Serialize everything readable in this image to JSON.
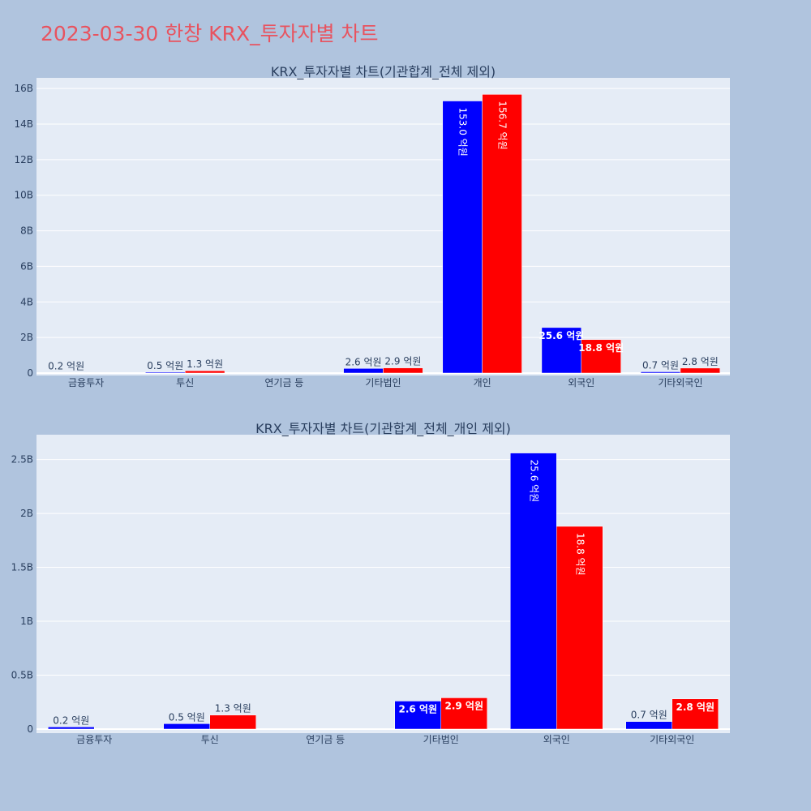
{
  "page_title": "2023-03-30 한창 KRX_투자자별 차트",
  "colors": {
    "background": "#b0c4de",
    "plot_bg": "#e5ecf6",
    "title": "#e8535f",
    "series_sell": "#0000ff",
    "series_buy": "#ff0000"
  },
  "chart_data": [
    {
      "type": "bar",
      "title": "KRX_투자자별 차트(기관합계_전체 제외)",
      "categories": [
        "금융투자",
        "투신",
        "연기금 등",
        "기타법인",
        "개인",
        "외국인",
        "기타외국인"
      ],
      "series": [
        {
          "color": "#0000ff",
          "values": [
            20000000,
            50000000,
            0,
            260000000,
            15300000000,
            2560000000,
            70000000
          ],
          "labels": [
            "0.2 억원",
            "0.5 억원",
            "",
            "2.6 억원",
            "153.0 억원",
            "25.6 억원",
            "0.7 억원"
          ]
        },
        {
          "color": "#ff0000",
          "values": [
            0,
            130000000,
            0,
            290000000,
            15670000000,
            1880000000,
            280000000
          ],
          "labels": [
            "",
            "1.3 억원",
            "",
            "2.9 억원",
            "156.7 억원",
            "18.8 억원",
            "2.8 억원"
          ]
        }
      ],
      "ylim": [
        0,
        16600000000
      ],
      "yticks": [
        0,
        2000000000,
        4000000000,
        6000000000,
        8000000000,
        10000000000,
        12000000000,
        14000000000,
        16000000000
      ],
      "yticklabels": [
        "0",
        "2B",
        "4B",
        "6B",
        "8B",
        "10B",
        "12B",
        "14B",
        "16B"
      ],
      "grid": true
    },
    {
      "type": "bar",
      "title": "KRX_투자자별 차트(기관합계_전체_개인 제외)",
      "categories": [
        "금융투자",
        "투신",
        "연기금 등",
        "기타법인",
        "외국인",
        "기타외국인"
      ],
      "series": [
        {
          "color": "#0000ff",
          "values": [
            20000000,
            50000000,
            0,
            260000000,
            2560000000,
            70000000
          ],
          "labels": [
            "0.2 억원",
            "0.5 억원",
            "",
            "2.6 억원",
            "25.6 억원",
            "0.7 억원"
          ]
        },
        {
          "color": "#ff0000",
          "values": [
            0,
            130000000,
            0,
            290000000,
            1880000000,
            280000000
          ],
          "labels": [
            "",
            "1.3 억원",
            "",
            "2.9 억원",
            "18.8 억원",
            "2.8 억원"
          ]
        }
      ],
      "ylim": [
        0,
        2730000000
      ],
      "yticks": [
        0,
        500000000,
        1000000000,
        1500000000,
        2000000000,
        2500000000
      ],
      "yticklabels": [
        "0",
        "0.5B",
        "1B",
        "1.5B",
        "2B",
        "2.5B"
      ],
      "grid": true
    }
  ]
}
